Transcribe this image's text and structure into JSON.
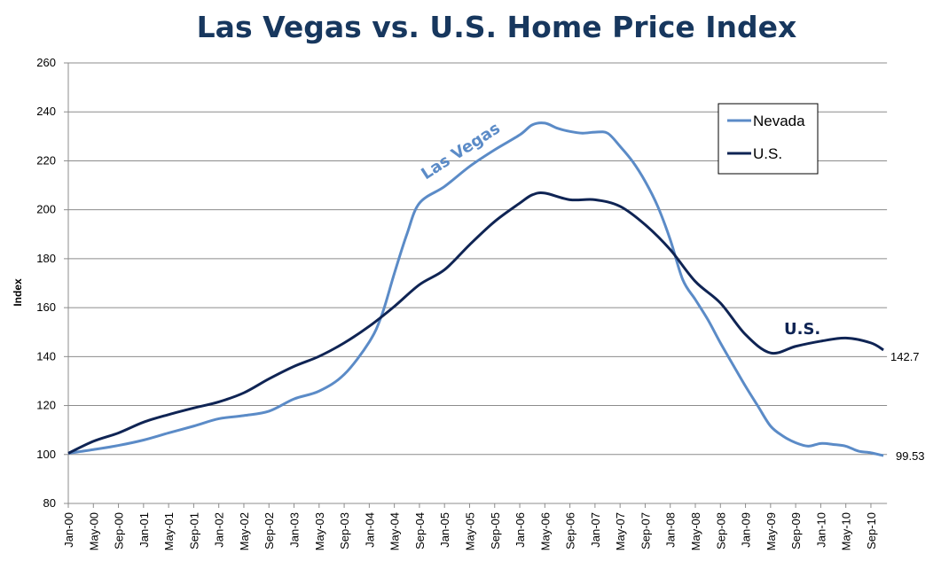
{
  "chart_data": {
    "type": "line",
    "title": "Las Vegas vs. U.S. Home Price Index",
    "xlabel": "",
    "ylabel": "Index",
    "ylim": [
      80,
      260
    ],
    "yticks": [
      80,
      100,
      120,
      140,
      160,
      180,
      200,
      220,
      240,
      260
    ],
    "xrange": [
      "Jan-00",
      "Nov-10"
    ],
    "xticks": [
      "Jan-00",
      "May-00",
      "Sep-00",
      "Jan-01",
      "May-01",
      "Sep-01",
      "Jan-02",
      "May-02",
      "Sep-02",
      "Jan-03",
      "May-03",
      "Sep-03",
      "Jan-04",
      "May-04",
      "Sep-04",
      "Jan-05",
      "May-05",
      "Sep-05",
      "Jan-06",
      "May-06",
      "Sep-06",
      "Jan-07",
      "May-07",
      "Sep-07",
      "Jan-08",
      "May-08",
      "Sep-08",
      "Jan-09",
      "May-09",
      "Sep-09",
      "Jan-10",
      "May-10",
      "Sep-10"
    ],
    "grid": true,
    "legend_position": "top-right",
    "series": [
      {
        "name": "Nevada",
        "color": "#5b8bc7",
        "x": [
          "Jan-00",
          "May-00",
          "Sep-00",
          "Jan-01",
          "May-01",
          "Sep-01",
          "Jan-02",
          "May-02",
          "Sep-02",
          "Jan-03",
          "May-03",
          "Sep-03",
          "Jan-04",
          "Mar-04",
          "May-04",
          "Jul-04",
          "Sep-04",
          "Jan-05",
          "May-05",
          "Sep-05",
          "Jan-06",
          "Mar-06",
          "May-06",
          "Jul-06",
          "Sep-06",
          "Nov-06",
          "Jan-07",
          "Mar-07",
          "May-07",
          "Jul-07",
          "Sep-07",
          "Nov-07",
          "Jan-08",
          "Mar-08",
          "May-08",
          "Jul-08",
          "Sep-08",
          "Nov-08",
          "Jan-09",
          "Mar-09",
          "May-09",
          "Jul-09",
          "Sep-09",
          "Nov-09",
          "Jan-10",
          "Mar-10",
          "May-10",
          "Jul-10",
          "Sep-10",
          "Nov-10"
        ],
        "values": [
          100.5,
          102,
          103.7,
          105.9,
          108.8,
          111.6,
          114.6,
          115.9,
          117.7,
          122.7,
          125.9,
          132.7,
          146,
          157,
          174,
          190,
          202.7,
          209.5,
          217.7,
          224.5,
          230.6,
          234.7,
          235.4,
          233.3,
          232,
          231.3,
          231.7,
          231.3,
          225.9,
          219.7,
          211.6,
          201.4,
          187.8,
          171.4,
          163.3,
          155.1,
          145.6,
          136.7,
          127.9,
          119.7,
          111.6,
          107.5,
          104.8,
          103.4,
          104.5,
          104.1,
          103.4,
          101.4,
          100.7,
          99.53
        ]
      },
      {
        "name": "U.S.",
        "color": "#0f2454",
        "x": [
          "Jan-00",
          "May-00",
          "Sep-00",
          "Jan-01",
          "May-01",
          "Sep-01",
          "Jan-02",
          "May-02",
          "Sep-02",
          "Jan-03",
          "May-03",
          "Sep-03",
          "Jan-04",
          "May-04",
          "Sep-04",
          "Jan-05",
          "May-05",
          "Sep-05",
          "Jan-06",
          "Mar-06",
          "May-06",
          "Sep-06",
          "Jan-07",
          "May-07",
          "Sep-07",
          "Jan-08",
          "May-08",
          "Sep-08",
          "Jan-09",
          "May-09",
          "Sep-09",
          "Jan-10",
          "May-10",
          "Sep-10",
          "Nov-10"
        ],
        "values": [
          100.5,
          105.4,
          108.8,
          113.2,
          116.3,
          119,
          121.5,
          125.2,
          130.9,
          136,
          140.1,
          145.6,
          152.4,
          160.5,
          169.4,
          175.5,
          185.7,
          195.2,
          202.7,
          206.1,
          206.8,
          204.1,
          204.1,
          201.4,
          193.9,
          183.7,
          170.7,
          161.9,
          149,
          141.5,
          144.2,
          146.3,
          147.6,
          145.6,
          142.7
        ]
      }
    ],
    "end_labels": {
      "nevada": "99.53",
      "us": "142.7"
    },
    "annotations": {
      "las_vegas": "Las Vegas",
      "us": "U.S."
    }
  }
}
